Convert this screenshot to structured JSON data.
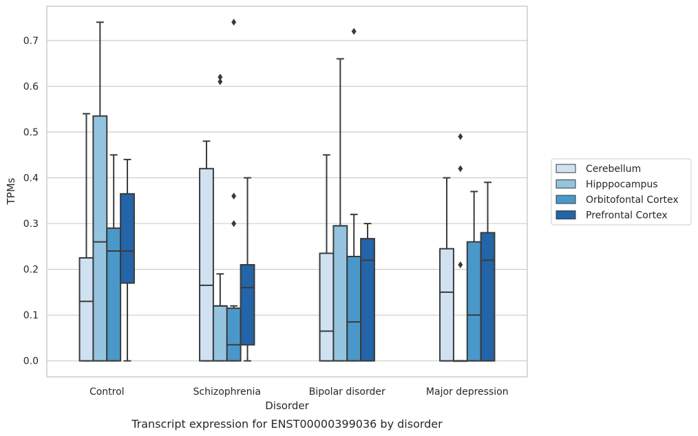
{
  "chart_data": {
    "type": "box",
    "title": "",
    "caption": "Transcript expression for ENST00000399036 by disorder",
    "xlabel": "Disorder",
    "ylabel": "TPMs",
    "ylim": [
      -0.035,
      0.775
    ],
    "yticks": [
      0.0,
      0.1,
      0.2,
      0.3,
      0.4,
      0.5,
      0.6,
      0.7
    ],
    "ytick_labels": [
      "0.0",
      "0.1",
      "0.2",
      "0.3",
      "0.4",
      "0.5",
      "0.6",
      "0.7"
    ],
    "grid": true,
    "legend_position": "right",
    "categories": [
      "Control",
      "Schizophrenia",
      "Bipolar disorder",
      "Major depression"
    ],
    "series": [
      {
        "name": "Cerebellum",
        "color": "#d0e1f2",
        "boxes": [
          {
            "whisker_low": 0.0,
            "q1": 0.0,
            "median": 0.13,
            "q3": 0.225,
            "whisker_high": 0.54,
            "outliers": []
          },
          {
            "whisker_low": 0.0,
            "q1": 0.0,
            "median": 0.165,
            "q3": 0.42,
            "whisker_high": 0.48,
            "outliers": []
          },
          {
            "whisker_low": 0.0,
            "q1": 0.0,
            "median": 0.065,
            "q3": 0.235,
            "whisker_high": 0.45,
            "outliers": []
          },
          {
            "whisker_low": 0.0,
            "q1": 0.0,
            "median": 0.15,
            "q3": 0.245,
            "whisker_high": 0.4,
            "outliers": []
          }
        ]
      },
      {
        "name": "Hipppocampus",
        "color": "#94c4df",
        "boxes": [
          {
            "whisker_low": 0.0,
            "q1": 0.0,
            "median": 0.26,
            "q3": 0.535,
            "whisker_high": 0.74,
            "outliers": []
          },
          {
            "whisker_low": 0.0,
            "q1": 0.0,
            "median": 0.12,
            "q3": 0.12,
            "whisker_high": 0.19,
            "outliers": [
              0.61,
              0.62
            ]
          },
          {
            "whisker_low": 0.0,
            "q1": 0.0,
            "median": 0.295,
            "q3": 0.295,
            "whisker_high": 0.66,
            "outliers": []
          },
          {
            "whisker_low": 0.0,
            "q1": 0.0,
            "median": 0.0,
            "q3": 0.0,
            "whisker_high": 0.0,
            "outliers": [
              0.21,
              0.42,
              0.49
            ]
          }
        ]
      },
      {
        "name": "Orbitofontal Cortex",
        "color": "#4a98c9",
        "boxes": [
          {
            "whisker_low": 0.0,
            "q1": 0.0,
            "median": 0.24,
            "q3": 0.29,
            "whisker_high": 0.45,
            "outliers": []
          },
          {
            "whisker_low": 0.0,
            "q1": 0.0,
            "median": 0.035,
            "q3": 0.115,
            "whisker_high": 0.12,
            "outliers": [
              0.3,
              0.36,
              0.74
            ]
          },
          {
            "whisker_low": 0.0,
            "q1": 0.0,
            "median": 0.085,
            "q3": 0.228,
            "whisker_high": 0.32,
            "outliers": [
              0.72
            ]
          },
          {
            "whisker_low": 0.0,
            "q1": 0.0,
            "median": 0.1,
            "q3": 0.26,
            "whisker_high": 0.37,
            "outliers": []
          }
        ]
      },
      {
        "name": "Prefrontal Cortex",
        "color": "#2464a8",
        "boxes": [
          {
            "whisker_low": 0.0,
            "q1": 0.17,
            "median": 0.24,
            "q3": 0.365,
            "whisker_high": 0.44,
            "outliers": []
          },
          {
            "whisker_low": 0.0,
            "q1": 0.035,
            "median": 0.16,
            "q3": 0.21,
            "whisker_high": 0.4,
            "outliers": []
          },
          {
            "whisker_low": 0.0,
            "q1": 0.0,
            "median": 0.22,
            "q3": 0.267,
            "whisker_high": 0.3,
            "outliers": []
          },
          {
            "whisker_low": 0.0,
            "q1": 0.0,
            "median": 0.22,
            "q3": 0.28,
            "whisker_high": 0.39,
            "outliers": []
          }
        ]
      }
    ],
    "line_color": "#3a3a3a",
    "grid_color": "#cccccc",
    "frame_color": "#cccccc"
  }
}
